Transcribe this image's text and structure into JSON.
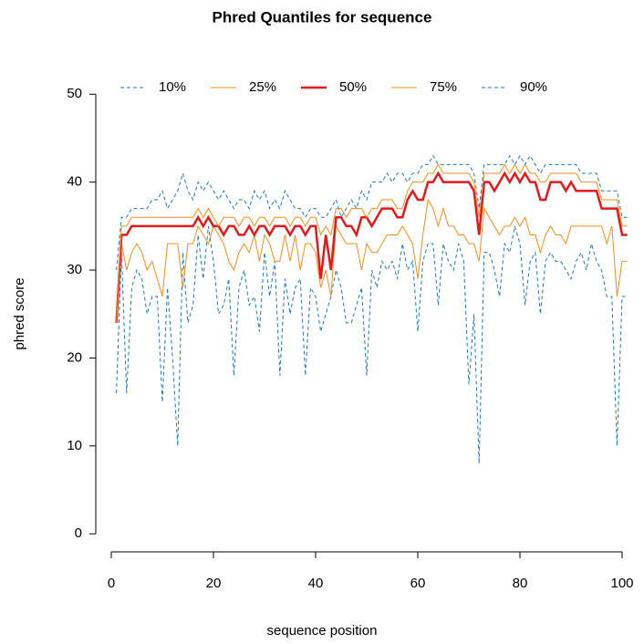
{
  "chart_data": {
    "type": "line",
    "title": "Phred Quantiles for sequence",
    "x_label": "sequence position",
    "y_label": "phred score",
    "x": [
      1,
      2,
      3,
      4,
      5,
      6,
      7,
      8,
      9,
      10,
      11,
      12,
      13,
      14,
      15,
      16,
      17,
      18,
      19,
      20,
      21,
      22,
      23,
      24,
      25,
      26,
      27,
      28,
      29,
      30,
      31,
      32,
      33,
      34,
      35,
      36,
      37,
      38,
      39,
      40,
      41,
      42,
      43,
      44,
      45,
      46,
      47,
      48,
      49,
      50,
      51,
      52,
      53,
      54,
      55,
      56,
      57,
      58,
      59,
      60,
      61,
      62,
      63,
      64,
      65,
      66,
      67,
      68,
      69,
      70,
      71,
      72,
      73,
      74,
      75,
      76,
      77,
      78,
      79,
      80,
      81,
      82,
      83,
      84,
      85,
      86,
      87,
      88,
      89,
      90,
      91,
      92,
      93,
      94,
      95,
      96,
      97,
      98,
      99,
      100,
      101
    ],
    "series": [
      {
        "name": "10%",
        "color": "#1f78b4",
        "linestyle": "dashed",
        "linewidth": 1,
        "values": [
          16,
          32,
          16,
          28,
          30,
          29,
          25,
          27,
          27,
          15,
          28,
          20,
          10,
          32,
          24,
          26,
          34,
          29,
          35,
          31,
          25,
          26,
          29,
          18,
          28,
          30,
          26,
          27,
          23,
          32,
          27,
          31,
          18,
          29,
          25,
          28,
          29,
          18,
          28,
          27,
          23,
          25,
          27,
          30,
          28,
          24,
          24,
          26,
          28,
          18,
          30,
          28,
          31,
          30,
          31,
          29,
          33,
          30,
          31,
          23,
          31,
          33,
          33,
          26,
          33,
          31,
          30,
          33,
          31,
          17,
          25,
          8,
          32,
          32,
          30,
          27,
          33,
          32,
          35,
          33,
          26,
          31,
          32,
          25,
          31,
          32,
          31,
          31,
          30,
          29,
          31,
          32,
          30,
          33,
          31,
          30,
          27,
          27,
          10,
          27,
          27
        ]
      },
      {
        "name": "25%",
        "color": "#f28e1c",
        "linestyle": "solid",
        "linewidth": 1,
        "values": [
          24,
          33,
          30,
          32,
          33,
          32,
          30,
          31,
          29,
          27,
          33,
          33,
          33,
          28,
          33,
          33,
          35,
          34,
          33,
          35,
          34,
          33,
          31,
          30,
          32,
          33,
          32,
          34,
          31,
          34,
          33,
          31,
          31,
          34,
          31,
          34,
          30,
          33,
          33,
          32,
          28,
          30,
          27,
          35,
          34,
          33,
          33,
          33,
          30,
          33,
          32,
          32,
          33,
          34,
          34,
          34,
          35,
          34,
          33,
          29,
          34,
          38,
          37,
          35,
          37,
          35,
          35,
          34,
          34,
          33,
          33,
          31,
          37,
          36,
          35,
          34,
          35,
          35,
          36,
          35,
          36,
          34,
          34,
          32,
          34,
          35,
          34,
          34,
          33,
          35,
          35,
          35,
          35,
          35,
          35,
          35,
          33,
          35,
          27,
          31,
          31
        ]
      },
      {
        "name": "50%",
        "color": "#e31a1c",
        "linestyle": "solid",
        "linewidth": 2.5,
        "values": [
          24,
          34,
          34,
          35,
          35,
          35,
          35,
          35,
          35,
          35,
          35,
          35,
          35,
          35,
          35,
          35,
          36,
          35,
          36,
          35,
          35,
          34,
          35,
          35,
          34,
          34,
          35,
          34,
          35,
          35,
          34,
          35,
          35,
          35,
          34,
          35,
          35,
          34,
          35,
          35,
          29,
          34,
          30,
          36,
          36,
          35,
          35,
          34,
          36,
          36,
          35,
          36,
          37,
          37,
          37,
          36,
          36,
          38,
          39,
          38,
          38,
          40,
          40,
          41,
          40,
          40,
          40,
          40,
          40,
          40,
          39,
          34,
          40,
          40,
          39,
          40,
          41,
          40,
          41,
          40,
          41,
          40,
          40,
          38,
          38,
          40,
          40,
          40,
          39,
          40,
          39,
          39,
          39,
          39,
          39,
          37,
          37,
          37,
          37,
          34,
          34
        ]
      },
      {
        "name": "75%",
        "color": "#f28e1c",
        "linestyle": "solid",
        "linewidth": 1,
        "values": [
          24,
          35,
          35,
          36,
          36,
          36,
          36,
          36,
          36,
          36,
          36,
          36,
          36,
          36,
          36,
          36,
          37,
          36,
          37,
          36,
          35,
          36,
          36,
          36,
          35,
          36,
          36,
          35,
          36,
          36,
          35,
          36,
          36,
          36,
          35,
          36,
          36,
          35,
          36,
          36,
          34,
          35,
          34,
          37,
          37,
          36,
          37,
          37,
          37,
          36,
          37,
          37,
          38,
          38,
          38,
          37,
          37,
          39,
          40,
          40,
          40,
          41,
          41,
          42,
          41,
          41,
          41,
          41,
          41,
          41,
          40,
          36,
          41,
          41,
          41,
          41,
          42,
          41,
          42,
          41,
          42,
          41,
          41,
          40,
          40,
          41,
          41,
          41,
          41,
          41,
          41,
          40,
          40,
          40,
          40,
          38,
          38,
          38,
          38,
          35,
          35
        ]
      },
      {
        "name": "90%",
        "color": "#1f78b4",
        "linestyle": "dashed",
        "linewidth": 1,
        "values": [
          30,
          36,
          36,
          37,
          37,
          37,
          37,
          38,
          38,
          39,
          37,
          38,
          39,
          41,
          39,
          38,
          40,
          39,
          40,
          39,
          38,
          39,
          38,
          37,
          38,
          38,
          37,
          39,
          38,
          39,
          37,
          38,
          37,
          39,
          38,
          37,
          37,
          36,
          37,
          37,
          36,
          36,
          37,
          38,
          36,
          37,
          38,
          37,
          39,
          38,
          40,
          40,
          40,
          41,
          40,
          41,
          41,
          40,
          41,
          41,
          42,
          42,
          43,
          42,
          42,
          42,
          42,
          42,
          42,
          42,
          41,
          37,
          42,
          42,
          42,
          42,
          42,
          43,
          42,
          43,
          42,
          43,
          42,
          41,
          42,
          42,
          42,
          42,
          42,
          42,
          42,
          41,
          41,
          41,
          41,
          39,
          39,
          39,
          39,
          36,
          36
        ]
      }
    ],
    "xlim": [
      -3,
      105
    ],
    "ylim": [
      -2,
      52
    ],
    "xticks": [
      0,
      20,
      40,
      60,
      80,
      100
    ],
    "yticks": [
      0,
      10,
      20,
      30,
      40,
      50
    ],
    "grid": false,
    "legend": "top"
  }
}
